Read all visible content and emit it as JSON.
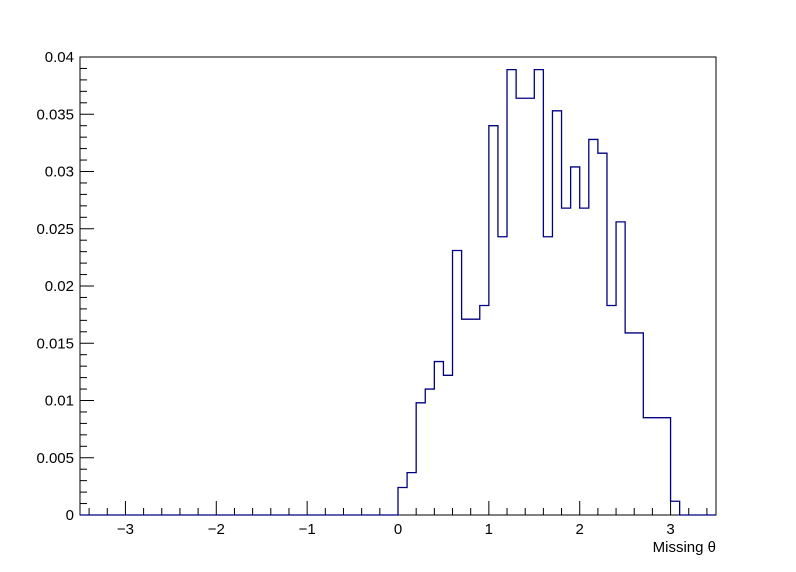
{
  "chart_data": {
    "type": "histogram",
    "xlabel": "Missing θ",
    "ylabel": "",
    "xlim": [
      -3.5,
      3.5
    ],
    "ylim": [
      0,
      0.04
    ],
    "x_ticks": [
      "−3",
      "−2",
      "−1",
      "0",
      "1",
      "2",
      "3"
    ],
    "y_ticks": [
      "0",
      "0.005",
      "0.01",
      "0.015",
      "0.02",
      "0.025",
      "0.03",
      "0.035",
      "0.04"
    ],
    "bin_edges": [
      0.0,
      0.1,
      0.2,
      0.3,
      0.4,
      0.5,
      0.6,
      0.7,
      0.8,
      0.9,
      1.0,
      1.1,
      1.2,
      1.3,
      1.4,
      1.5,
      1.6,
      1.7,
      1.8,
      1.9,
      2.0,
      2.1,
      2.2,
      2.3,
      2.4,
      2.5,
      2.6,
      2.7,
      2.8,
      2.9,
      3.0,
      3.1
    ],
    "values": [
      0.0024,
      0.0037,
      0.0098,
      0.011,
      0.0134,
      0.0122,
      0.0231,
      0.0171,
      0.0171,
      0.0183,
      0.034,
      0.0243,
      0.0389,
      0.0364,
      0.0364,
      0.0389,
      0.0243,
      0.0353,
      0.0268,
      0.0304,
      0.0268,
      0.0328,
      0.0316,
      0.0183,
      0.0256,
      0.0159,
      0.0159,
      0.0085,
      0.0085,
      0.0085,
      0.0012
    ],
    "line_color": "#000080",
    "grid": false
  }
}
